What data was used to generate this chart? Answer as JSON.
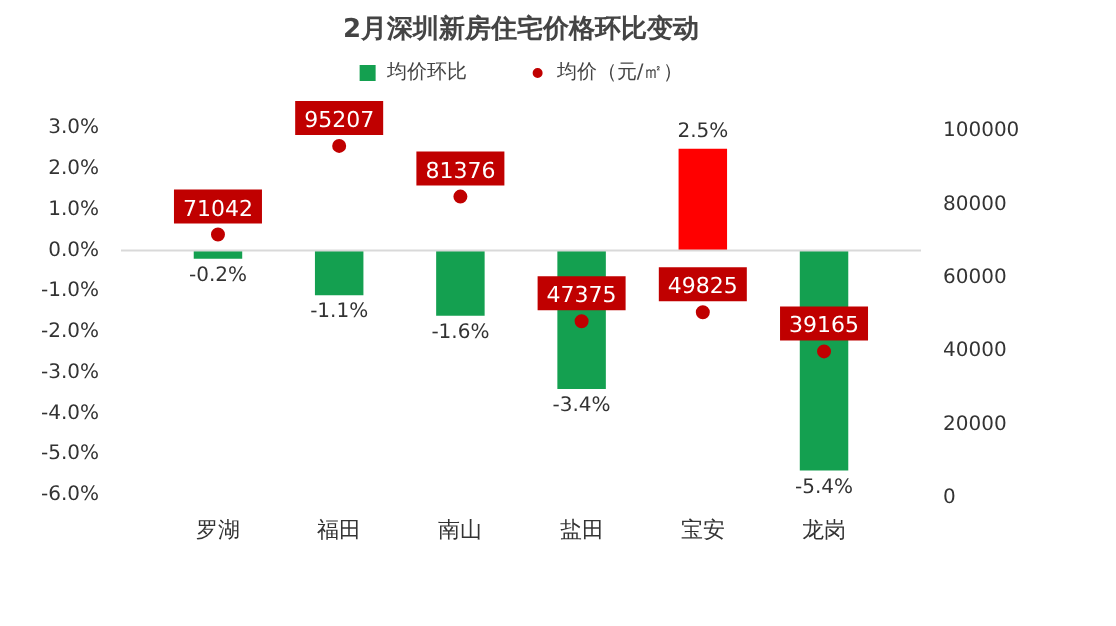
{
  "chart_data": {
    "type": "bar",
    "title": "2月深圳新房住宅价格环比变动",
    "categories": [
      "罗湖",
      "福田",
      "南山",
      "盐田",
      "宝安",
      "龙岗"
    ],
    "series": [
      {
        "name": "均价环比",
        "colors": [
          "#14a050",
          "#14a050",
          "#14a050",
          "#14a050",
          "#ff0000",
          "#14a050"
        ],
        "values": [
          -0.2,
          -1.1,
          -1.6,
          -3.4,
          2.5,
          -5.4
        ],
        "value_labels": [
          "-0.2%",
          "-1.1%",
          "-1.6%",
          "-3.4%",
          "2.5%",
          "-5.4%"
        ]
      },
      {
        "name": "均价（元/㎡）",
        "type": "scatter",
        "axis": "y2",
        "color": "#c00000",
        "marker": "circle",
        "values": [
          71042,
          95207,
          81376,
          47375,
          49825,
          39165
        ],
        "value_labels": [
          "71042",
          "95207",
          "81376",
          "47375",
          "49825",
          "39165"
        ]
      }
    ],
    "ylim": [
      -6,
      3
    ],
    "yticks": [
      {
        "value": 3,
        "label": "3.0%"
      },
      {
        "value": 2,
        "label": "2.0%"
      },
      {
        "value": 1,
        "label": "1.0%"
      },
      {
        "value": 0,
        "label": "0.0%"
      },
      {
        "value": -1,
        "label": "-1.0%"
      },
      {
        "value": -2,
        "label": "-2.0%"
      },
      {
        "value": -3,
        "label": "-3.0%"
      },
      {
        "value": -4,
        "label": "-4.0%"
      },
      {
        "value": -5,
        "label": "-5.0%"
      },
      {
        "value": -6,
        "label": "-6.0%"
      }
    ],
    "y2lim": [
      0,
      100000
    ],
    "y2ticks": [
      0,
      20000,
      40000,
      60000,
      80000,
      100000
    ],
    "ref_lines": [
      {
        "axis": "y",
        "value": 0,
        "label": null,
        "color": "#d9d9d9"
      }
    ],
    "grid": false,
    "legend": "top"
  }
}
